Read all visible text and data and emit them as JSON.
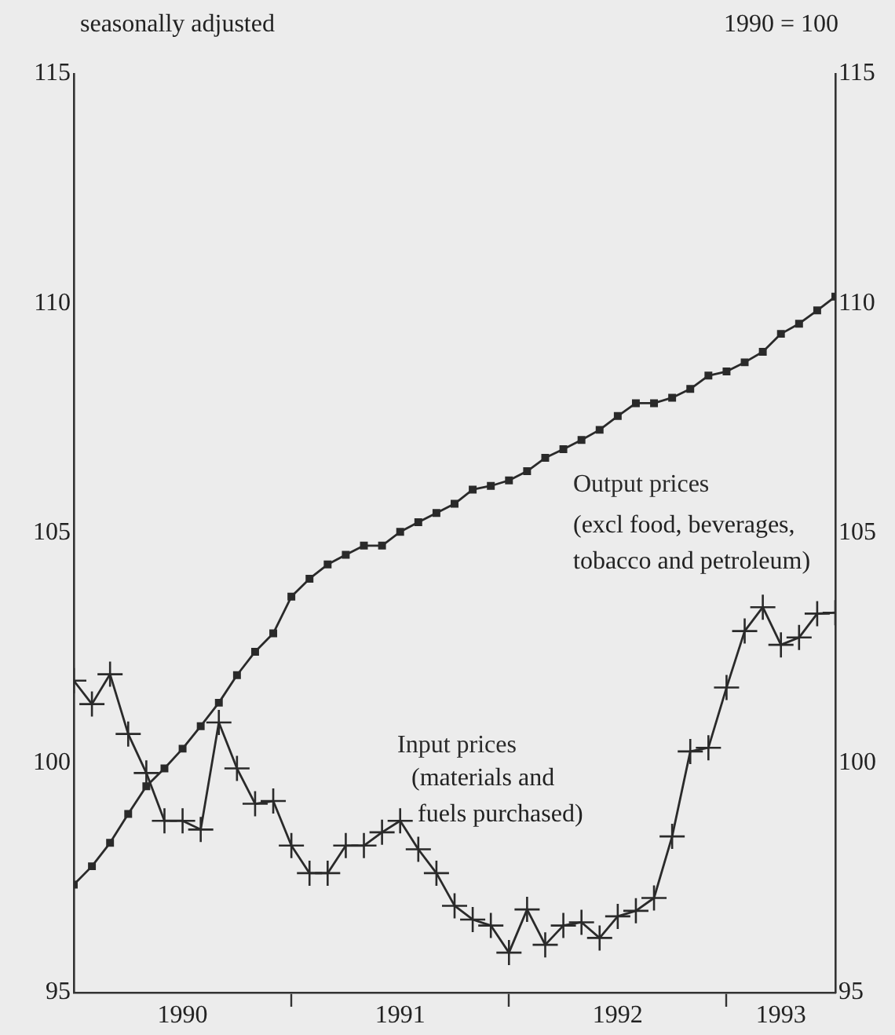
{
  "chart_data": {
    "type": "line",
    "annotations": [
      "seasonally adjusted",
      "1990 = 100",
      "(excl food, beverages,\ntobacco and petroleum)",
      "(materials and\n fuels purchased)"
    ],
    "x": [
      "1990-01",
      "1990-02",
      "1990-03",
      "1990-04",
      "1990-05",
      "1990-06",
      "1990-07",
      "1990-08",
      "1990-09",
      "1990-10",
      "1990-11",
      "1990-12",
      "1991-01",
      "1991-02",
      "1991-03",
      "1991-04",
      "1991-05",
      "1991-06",
      "1991-07",
      "1991-08",
      "1991-09",
      "1991-10",
      "1991-11",
      "1991-12",
      "1992-01",
      "1992-02",
      "1992-03",
      "1992-04",
      "1992-05",
      "1992-06",
      "1992-07",
      "1992-08",
      "1992-09",
      "1992-10",
      "1992-11",
      "1992-12",
      "1993-01",
      "1993-02",
      "1993-03",
      "1993-04",
      "1993-05",
      "1993-06",
      "1993-07"
    ],
    "series": [
      {
        "name": "Output prices",
        "color": "#2a2a2a",
        "marker": "square",
        "values": [
          97.35,
          97.75,
          98.26,
          98.89,
          99.49,
          99.88,
          100.31,
          100.8,
          101.31,
          101.91,
          102.42,
          102.82,
          103.62,
          104.01,
          104.32,
          104.53,
          104.73,
          104.73,
          105.03,
          105.24,
          105.44,
          105.64,
          105.95,
          106.03,
          106.15,
          106.35,
          106.64,
          106.83,
          107.03,
          107.25,
          107.55,
          107.83,
          107.83,
          107.95,
          108.14,
          108.43,
          108.52,
          108.72,
          108.95,
          109.34,
          109.56,
          109.85,
          110.15
        ]
      },
      {
        "name": "Input prices",
        "color": "#2a2a2a",
        "marker": "cross",
        "values": [
          101.79,
          101.28,
          101.93,
          100.63,
          99.78,
          98.74,
          98.74,
          98.55,
          100.88,
          99.88,
          99.11,
          99.17,
          98.2,
          97.6,
          97.6,
          98.2,
          98.2,
          98.49,
          98.74,
          98.12,
          97.6,
          96.89,
          96.59,
          96.46,
          95.87,
          96.81,
          96.04,
          96.46,
          96.53,
          96.19,
          96.66,
          96.78,
          97.06,
          98.4,
          100.25,
          100.33,
          101.64,
          102.87,
          103.39,
          102.57,
          102.73,
          103.25,
          103.27
        ]
      }
    ],
    "xlim": [
      "1990-01",
      "1993-07"
    ],
    "xticks": [
      {
        "value": "1990-07",
        "label": "1990"
      },
      {
        "value": "1991-01",
        "label": null
      },
      {
        "value": "1991-07",
        "label": "1991"
      },
      {
        "value": "1992-01",
        "label": null
      },
      {
        "value": "1992-07",
        "label": "1992"
      },
      {
        "value": "1993-01",
        "label": null
      },
      {
        "value": "1993-04",
        "label": "1993"
      }
    ],
    "ylim": [
      95,
      115
    ],
    "yticks": [
      95,
      100,
      105,
      110,
      115
    ],
    "y2lim": [
      95,
      115
    ],
    "y2ticks": [
      95,
      100,
      105,
      110,
      115
    ],
    "grid": false,
    "legend": false,
    "line_style": "solid"
  }
}
